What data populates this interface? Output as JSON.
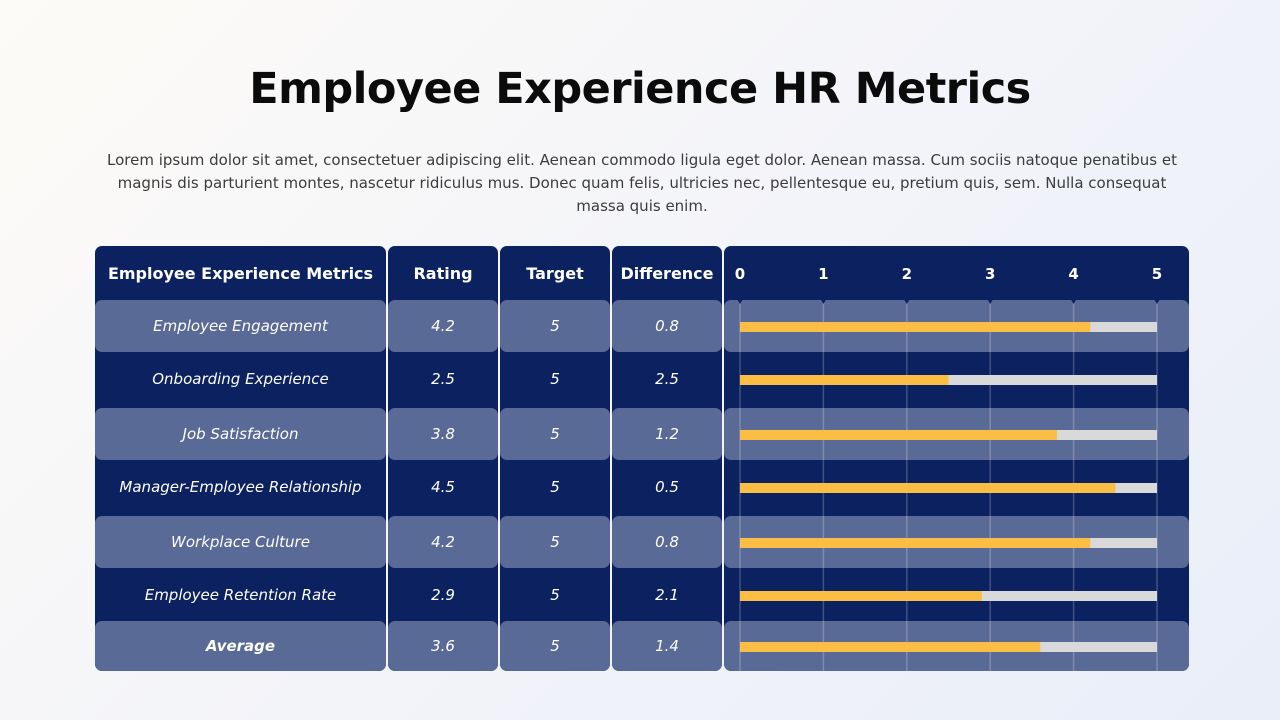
{
  "title": "Employee Experience HR Metrics",
  "description": "Lorem ipsum dolor sit amet, consectetuer adipiscing elit. Aenean commodo ligula eget dolor. Aenean massa. Cum sociis natoque penatibus et magnis dis parturient montes, nascetur ridiculus mus. Donec quam felis, ultricies nec, pellentesque eu, pretium quis, sem. Nulla consequat massa quis enim.",
  "headers": {
    "metric": "Employee Experience Metrics",
    "rating": "Rating",
    "target": "Target",
    "difference": "Difference"
  },
  "rows": [
    {
      "metric": "Employee Engagement",
      "rating": "4.2",
      "target": "5",
      "difference": "0.8"
    },
    {
      "metric": "Onboarding Experience",
      "rating": "2.5",
      "target": "5",
      "difference": "2.5"
    },
    {
      "metric": "Job Satisfaction",
      "rating": "3.8",
      "target": "5",
      "difference": "1.2"
    },
    {
      "metric": "Manager-Employee Relationship",
      "rating": "4.5",
      "target": "5",
      "difference": "0.5"
    },
    {
      "metric": "Workplace Culture",
      "rating": "4.2",
      "target": "5",
      "difference": "0.8"
    },
    {
      "metric": "Employee Retention Rate",
      "rating": "2.9",
      "target": "5",
      "difference": "2.1"
    },
    {
      "metric": "Average",
      "rating": "3.6",
      "target": "5",
      "difference": "1.4"
    }
  ],
  "colors": {
    "dark": "#0c2160",
    "light": "#5a6a97",
    "bar": "#fbbe45",
    "track": "#d9d9d9"
  },
  "chart_data": {
    "type": "bar",
    "orientation": "horizontal",
    "categories": [
      "Employee Engagement",
      "Onboarding Experience",
      "Job Satisfaction",
      "Manager-Employee Relationship",
      "Workplace Culture",
      "Employee Retention Rate",
      "Average"
    ],
    "series": [
      {
        "values": [
          4.2,
          2.5,
          3.8,
          4.5,
          4.2,
          2.9,
          3.6
        ]
      }
    ],
    "target": 5,
    "xlim": [
      0,
      5
    ],
    "xticks": [
      "0",
      "1",
      "2",
      "3",
      "4",
      "5"
    ],
    "grid": true
  }
}
